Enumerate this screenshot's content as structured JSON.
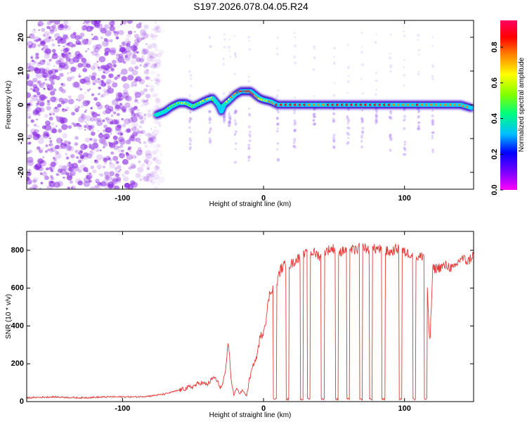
{
  "figure": {
    "title": "S197.2026.078.04.05.R24"
  },
  "colors": {
    "signal_line": "#e53935",
    "axis": "#000000",
    "scatter_noise": "#8a2be2",
    "colorbar_stops": [
      "#ff00ff",
      "#8000ff",
      "#0000ff",
      "#00c0ff",
      "#00ff80",
      "#80ff00",
      "#ffff00",
      "#ff8000",
      "#ff0000",
      "#ff0060"
    ]
  },
  "chart_data": [
    {
      "type": "heatmap",
      "title": "S197.2026.078.04.05.R24",
      "xlabel": "Height of straight line (km)",
      "ylabel": "Frequency (Hz)",
      "xlim": [
        -168,
        149
      ],
      "ylim": [
        -25,
        25
      ],
      "x_ticks": [
        -100,
        0,
        100
      ],
      "x_tick_labels": [
        "-100",
        "0",
        "100"
      ],
      "y_ticks": [
        -20,
        -10,
        0,
        10,
        20
      ],
      "y_tick_labels": [
        "-20",
        "-10",
        "0",
        "10",
        "20"
      ],
      "colorbar": {
        "label": "Normalized spectral amplitude",
        "range": [
          0,
          0.95
        ],
        "ticks": [
          0,
          0.2,
          0.4,
          0.6,
          0.8
        ],
        "tick_labels": [
          "0.0",
          "0.2",
          "0.4",
          "0.6",
          "0.8"
        ]
      },
      "noise_region_x": [
        -168,
        -78
      ],
      "ridge": {
        "x": [
          -76,
          -70,
          -65,
          -60,
          -55,
          -50,
          -45,
          -40,
          -36,
          -32,
          -30,
          -28,
          -25,
          -20,
          -16,
          -12,
          -9,
          -6,
          -3,
          0,
          5,
          10,
          20,
          30,
          40,
          50,
          60,
          70,
          80,
          90,
          100,
          110,
          120,
          130,
          140,
          148
        ],
        "y": [
          -3,
          -2,
          -0.5,
          0.5,
          0.5,
          -0.5,
          0.5,
          1.5,
          2,
          0,
          -2,
          0,
          1,
          3,
          4,
          4,
          4,
          3,
          2,
          1.5,
          1,
          0,
          0,
          0,
          0,
          0,
          0,
          0,
          0,
          0,
          0,
          0,
          0,
          0,
          0,
          -1
        ],
        "amplitude": [
          0.4,
          0.45,
          0.5,
          0.55,
          0.6,
          0.5,
          0.55,
          0.7,
          0.6,
          0.4,
          0.3,
          0.4,
          0.6,
          0.75,
          0.85,
          0.9,
          0.85,
          0.8,
          0.7,
          0.65,
          0.7,
          0.8,
          0.85,
          0.8,
          0.75,
          0.85,
          0.8,
          0.85,
          0.8,
          0.8,
          0.75,
          0.8,
          0.75,
          0.7,
          0.75,
          0.8
        ]
      },
      "vertical_streaks_x": [
        -52,
        -38,
        -28,
        -24,
        -20,
        -10,
        10,
        22,
        36,
        50,
        60,
        70,
        80,
        90,
        100,
        110,
        120
      ]
    },
    {
      "type": "line",
      "xlabel": "Height of straight line (km)",
      "ylabel": "SNR (10 * v/v)",
      "xlim": [
        -168,
        149
      ],
      "ylim": [
        0,
        900
      ],
      "x_ticks": [
        -100,
        0,
        100
      ],
      "x_tick_labels": [
        "-100",
        "0",
        "100"
      ],
      "y_ticks": [
        0,
        200,
        400,
        600,
        800
      ],
      "y_tick_labels": [
        "0",
        "200",
        "400",
        "600",
        "800"
      ],
      "series": [
        {
          "name": "SNR",
          "x": [
            -168,
            -150,
            -130,
            -110,
            -90,
            -80,
            -70,
            -60,
            -50,
            -45,
            -40,
            -35,
            -30,
            -27,
            -25,
            -23,
            -21,
            -19,
            -17,
            -15,
            -12,
            -10,
            -7,
            -5,
            -3,
            0,
            2,
            4,
            6,
            8,
            10,
            12,
            15,
            20,
            25,
            30,
            35,
            40,
            45,
            50,
            55,
            60,
            65,
            70,
            75,
            80,
            85,
            90,
            95,
            100,
            105,
            110,
            115,
            118,
            120,
            125,
            130,
            135,
            140,
            145,
            149
          ],
          "y": [
            20,
            25,
            20,
            25,
            25,
            30,
            40,
            60,
            80,
            100,
            90,
            130,
            70,
            150,
            330,
            120,
            30,
            80,
            40,
            60,
            30,
            120,
            200,
            230,
            320,
            380,
            450,
            560,
            600,
            620,
            640,
            700,
            720,
            730,
            760,
            780,
            790,
            770,
            800,
            810,
            790,
            810,
            800,
            820,
            800,
            810,
            800,
            790,
            810,
            790,
            780,
            760,
            780,
            300,
            700,
            710,
            720,
            700,
            760,
            740,
            780
          ]
        }
      ],
      "dropouts_x": [
        8,
        17,
        27,
        32,
        42,
        52,
        60,
        69,
        76,
        85,
        97,
        107,
        115
      ]
    }
  ]
}
